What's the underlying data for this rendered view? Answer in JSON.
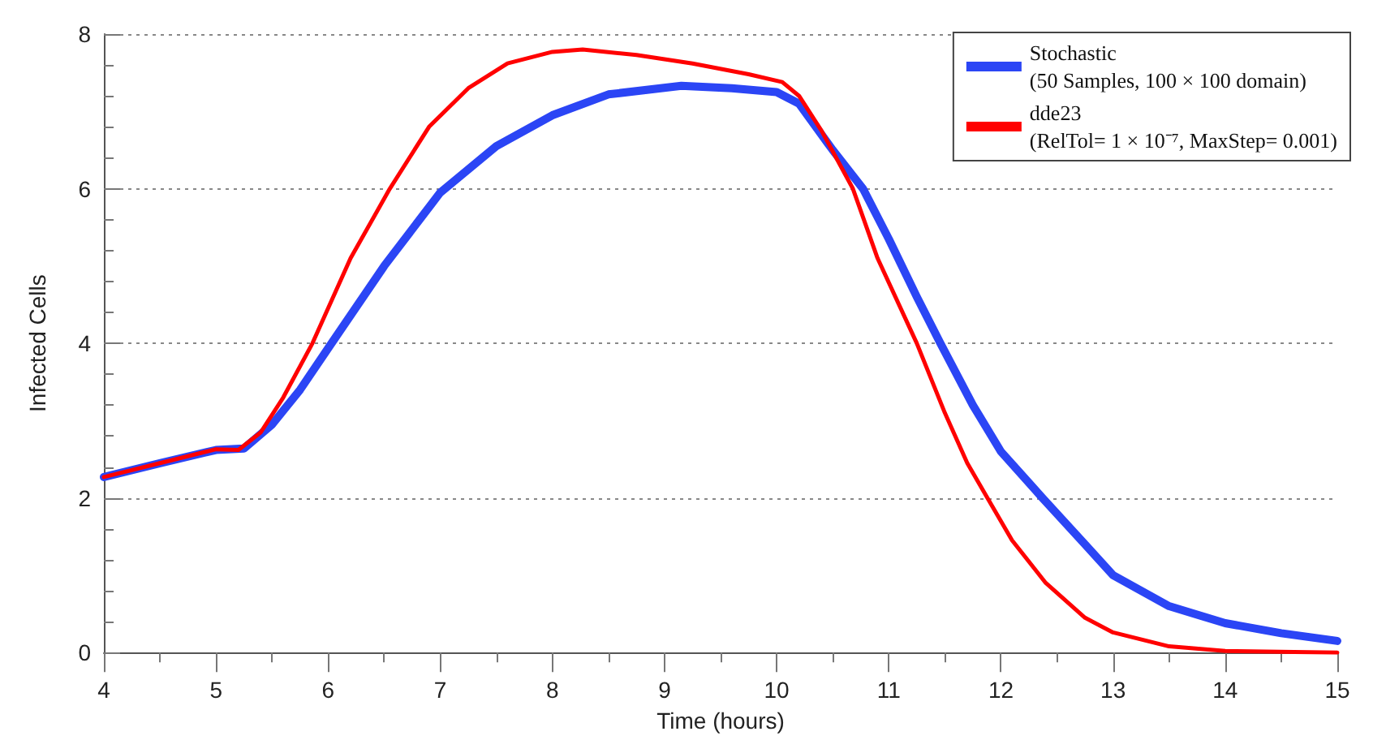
{
  "chart_data": {
    "type": "line",
    "xlabel": "Time (hours)",
    "ylabel": "Infected Cells",
    "xlim": [
      4,
      15
    ],
    "xticks": [
      4,
      {
        "value": 4.5,
        "label": null
      },
      5,
      {
        "value": 5.5,
        "label": null
      },
      6,
      {
        "value": 6.5,
        "label": null
      },
      7,
      {
        "value": 7.5,
        "label": null
      },
      8,
      {
        "value": 8.5,
        "label": null
      },
      9,
      {
        "value": 9.5,
        "label": null
      },
      10,
      {
        "value": 10.5,
        "label": null
      },
      11,
      {
        "value": 11.5,
        "label": null
      },
      12,
      {
        "value": 12.5,
        "label": null
      },
      13,
      {
        "value": 13.5,
        "label": null
      },
      14,
      {
        "value": 14.5,
        "label": null
      },
      15
    ],
    "ylim": [
      0,
      8
    ],
    "yticks": [
      0,
      {
        "value": 0.4,
        "label": null
      },
      {
        "value": 0.8,
        "label": null
      },
      {
        "value": 1.2,
        "label": null
      },
      {
        "value": 1.6,
        "label": null
      },
      2,
      {
        "value": 2.4,
        "label": null
      },
      {
        "value": 2.8,
        "label": null
      },
      {
        "value": 3.2,
        "label": null
      },
      {
        "value": 3.6,
        "label": null
      },
      4,
      {
        "value": 4.4,
        "label": null
      },
      {
        "value": 4.8,
        "label": null
      },
      {
        "value": 5.2,
        "label": null
      },
      {
        "value": 5.6,
        "label": null
      },
      6,
      {
        "value": 6.4,
        "label": null
      },
      {
        "value": 6.8,
        "label": null
      },
      {
        "value": 7.2,
        "label": null
      },
      {
        "value": 7.6,
        "label": null
      },
      8
    ],
    "grid": "y",
    "legend": "top right",
    "marker": "none",
    "line_style": "solid",
    "series": [
      {
        "name": "Stochastic\n(50 Samples, 100 × 100 domain)",
        "color": "#2b45f5",
        "x": [
          4,
          4.5,
          5,
          5.25,
          5.5,
          5.75,
          6.03,
          6.5,
          7,
          7.5,
          8,
          8.5,
          9.15,
          9.6,
          10,
          10.2,
          10.5,
          10.77,
          11,
          11.25,
          11.46,
          11.75,
          12,
          12.37,
          12.75,
          13,
          13.5,
          14,
          14.5,
          15
        ],
        "values": [
          2.27,
          2.45,
          2.62,
          2.64,
          2.95,
          3.4,
          4.0,
          5.0,
          5.95,
          6.55,
          6.95,
          7.22,
          7.33,
          7.3,
          7.25,
          7.1,
          6.5,
          6.0,
          5.35,
          4.6,
          4.0,
          3.2,
          2.6,
          2.0,
          1.4,
          1.0,
          0.6,
          0.38,
          0.25,
          0.15
        ]
      },
      {
        "name": "dde23\n(RelTol= 1 × 10⁻⁷, MaxStep= 0.001)",
        "color": "#ff0000",
        "x": [
          4,
          4.5,
          5,
          5.2,
          5.4,
          5.6,
          5.86,
          6.2,
          6.55,
          6.9,
          7.25,
          7.6,
          8,
          8.27,
          8.75,
          9.25,
          9.75,
          10.05,
          10.2,
          10.4,
          10.68,
          10.9,
          11.25,
          11.5,
          11.7,
          11.88,
          12.1,
          12.4,
          12.75,
          13,
          13.5,
          14,
          15
        ],
        "values": [
          2.27,
          2.45,
          2.63,
          2.62,
          2.85,
          3.3,
          4.0,
          5.1,
          6.0,
          6.8,
          7.3,
          7.62,
          7.77,
          7.8,
          7.73,
          7.62,
          7.48,
          7.38,
          7.2,
          6.75,
          6.0,
          5.1,
          4.0,
          3.1,
          2.45,
          2.0,
          1.45,
          0.9,
          0.45,
          0.26,
          0.08,
          0.02,
          0.0
        ]
      }
    ]
  }
}
